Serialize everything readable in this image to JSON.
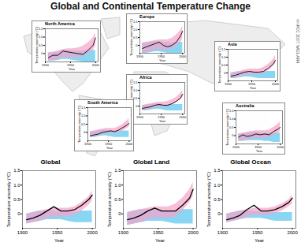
{
  "title": "Global and Continental Temperature Change",
  "credit": "©IPCC 2007: WG1-AR4",
  "chart_data": [
    {
      "type": "line",
      "title": "North America",
      "x_label": "Year",
      "y_label": "Temperature anomaly (°C)",
      "x": [
        1906,
        1915,
        1925,
        1935,
        1945,
        1955,
        1965,
        1975,
        1985,
        1995,
        2000
      ],
      "xlim": [
        1900,
        2005
      ],
      "xticks": [
        1900,
        1950,
        2000
      ],
      "ylim": [
        -0.5,
        1.5
      ],
      "yticks": [
        0,
        0.5,
        {
          "value": 1,
          "label": "1.0"
        },
        1.5
      ],
      "series": [
        {
          "type": "area",
          "color": "#5cc6f0",
          "lower": [
            -0.45,
            -0.45,
            -0.4,
            -0.35,
            -0.35,
            -0.4,
            -0.45,
            -0.5,
            -0.5,
            -0.5,
            -0.5
          ],
          "upper": [
            0.05,
            0.05,
            0.1,
            0.2,
            0.2,
            0.15,
            0.15,
            0.15,
            0.2,
            0.2,
            0.2
          ]
        },
        {
          "type": "area",
          "color": "#f5a3cb",
          "lower": [
            -0.45,
            -0.4,
            -0.35,
            -0.25,
            -0.25,
            -0.25,
            -0.25,
            -0.15,
            0.0,
            0.2,
            0.45
          ],
          "upper": [
            0.05,
            0.1,
            0.15,
            0.25,
            0.3,
            0.3,
            0.35,
            0.45,
            0.65,
            0.95,
            1.25
          ]
        },
        {
          "type": "line",
          "color": "#000000",
          "values": [
            -0.25,
            -0.1,
            -0.1,
            0.15,
            0.1,
            0.05,
            0.0,
            -0.05,
            0.2,
            0.5,
            0.95
          ]
        }
      ]
    },
    {
      "type": "line",
      "title": "Europe",
      "x_label": "Year",
      "y_label": "Temperature anomaly (°C)",
      "x": [
        1906,
        1915,
        1925,
        1935,
        1945,
        1955,
        1965,
        1975,
        1985,
        1995,
        2000
      ],
      "xlim": [
        1900,
        2005
      ],
      "xticks": [
        1900,
        1950,
        2000
      ],
      "ylim": [
        -0.5,
        1.5
      ],
      "yticks": [
        0,
        0.5,
        {
          "value": 1,
          "label": "1.0"
        },
        1.5
      ],
      "series": [
        {
          "type": "area",
          "color": "#5cc6f0",
          "lower": [
            -0.5,
            -0.5,
            -0.45,
            -0.4,
            -0.4,
            -0.45,
            -0.5,
            -0.5,
            -0.5,
            -0.5,
            -0.5
          ],
          "upper": [
            0.15,
            0.15,
            0.2,
            0.25,
            0.25,
            0.2,
            0.2,
            0.15,
            0.2,
            0.2,
            0.2
          ]
        },
        {
          "type": "area",
          "color": "#f5a3cb",
          "lower": [
            -0.5,
            -0.45,
            -0.4,
            -0.3,
            -0.25,
            -0.3,
            -0.3,
            -0.2,
            -0.05,
            0.2,
            0.4
          ],
          "upper": [
            0.15,
            0.2,
            0.25,
            0.3,
            0.35,
            0.35,
            0.35,
            0.45,
            0.65,
            0.95,
            1.2
          ]
        },
        {
          "type": "line",
          "color": "#000000",
          "values": [
            -0.2,
            -0.1,
            0.0,
            0.1,
            0.2,
            0.0,
            -0.1,
            0.0,
            0.2,
            0.6,
            0.9
          ]
        }
      ]
    },
    {
      "type": "line",
      "title": "Asia",
      "x_label": "Year",
      "y_label": "Temperature anomaly (°C)",
      "x": [
        1906,
        1915,
        1925,
        1935,
        1945,
        1955,
        1965,
        1975,
        1985,
        1995,
        2000
      ],
      "xlim": [
        1900,
        2005
      ],
      "xticks": [
        1900,
        1950,
        2000
      ],
      "ylim": [
        -0.5,
        1.5
      ],
      "yticks": [
        0,
        0.5,
        {
          "value": 1,
          "label": "1.0"
        },
        1.5
      ],
      "series": [
        {
          "type": "area",
          "color": "#5cc6f0",
          "lower": [
            -0.35,
            -0.35,
            -0.3,
            -0.25,
            -0.25,
            -0.3,
            -0.35,
            -0.35,
            -0.35,
            -0.35,
            -0.35
          ],
          "upper": [
            0.0,
            0.05,
            0.1,
            0.1,
            0.1,
            0.05,
            0.05,
            0.05,
            0.1,
            0.1,
            0.1
          ]
        },
        {
          "type": "area",
          "color": "#f5a3cb",
          "lower": [
            -0.35,
            -0.3,
            -0.25,
            -0.15,
            -0.1,
            -0.1,
            -0.1,
            -0.05,
            0.15,
            0.4,
            0.6
          ],
          "upper": [
            0.0,
            0.05,
            0.1,
            0.2,
            0.25,
            0.25,
            0.25,
            0.35,
            0.55,
            0.85,
            1.1
          ]
        },
        {
          "type": "line",
          "color": "#000000",
          "values": [
            -0.2,
            -0.15,
            -0.05,
            0.05,
            0.1,
            0.05,
            0.05,
            0.1,
            0.3,
            0.55,
            0.8
          ]
        }
      ]
    },
    {
      "type": "line",
      "title": "Africa",
      "x_label": "Year",
      "y_label": "Temperature anomaly (°C)",
      "x": [
        1906,
        1915,
        1925,
        1935,
        1945,
        1955,
        1965,
        1975,
        1985,
        1995,
        2000
      ],
      "xlim": [
        1900,
        2005
      ],
      "xticks": [
        1900,
        1950,
        2000
      ],
      "ylim": [
        -0.5,
        1.5
      ],
      "yticks": [
        0,
        0.5,
        {
          "value": 1,
          "label": "1.0"
        },
        1.5
      ],
      "series": [
        {
          "type": "area",
          "color": "#5cc6f0",
          "lower": [
            -0.3,
            -0.3,
            -0.25,
            -0.2,
            -0.2,
            -0.25,
            -0.3,
            -0.3,
            -0.3,
            -0.3,
            -0.3
          ],
          "upper": [
            0.05,
            0.05,
            0.1,
            0.15,
            0.15,
            0.1,
            0.1,
            0.1,
            0.1,
            0.1,
            0.1
          ]
        },
        {
          "type": "area",
          "color": "#f5a3cb",
          "lower": [
            -0.3,
            -0.25,
            -0.2,
            -0.1,
            -0.05,
            -0.05,
            -0.05,
            0.05,
            0.2,
            0.4,
            0.55
          ],
          "upper": [
            0.05,
            0.1,
            0.15,
            0.2,
            0.25,
            0.25,
            0.3,
            0.4,
            0.55,
            0.8,
            1.0
          ]
        },
        {
          "type": "line",
          "color": "#000000",
          "values": [
            -0.15,
            -0.1,
            -0.05,
            0.05,
            0.1,
            0.05,
            0.05,
            0.15,
            0.3,
            0.5,
            0.75
          ]
        }
      ]
    },
    {
      "type": "line",
      "title": "South America",
      "x_label": "Year",
      "y_label": "Temperature anomaly (°C)",
      "x": [
        1906,
        1915,
        1925,
        1935,
        1945,
        1955,
        1965,
        1975,
        1985,
        1995,
        2000
      ],
      "xlim": [
        1900,
        2005
      ],
      "xticks": [
        1900,
        1950,
        2000
      ],
      "ylim": [
        -0.5,
        1.5
      ],
      "yticks": [
        0,
        0.5,
        {
          "value": 1,
          "label": "1.0"
        },
        1.5
      ],
      "series": [
        {
          "type": "area",
          "color": "#5cc6f0",
          "lower": [
            -0.3,
            -0.3,
            -0.25,
            -0.2,
            -0.2,
            -0.25,
            -0.3,
            -0.3,
            -0.3,
            -0.3,
            -0.3
          ],
          "upper": [
            0.05,
            0.05,
            0.1,
            0.15,
            0.15,
            0.1,
            0.1,
            0.1,
            0.1,
            0.1,
            0.1
          ]
        },
        {
          "type": "area",
          "color": "#f5a3cb",
          "lower": [
            -0.3,
            -0.25,
            -0.2,
            -0.1,
            -0.05,
            -0.05,
            -0.05,
            0.0,
            0.1,
            0.25,
            0.35
          ],
          "upper": [
            0.05,
            0.1,
            0.15,
            0.2,
            0.25,
            0.25,
            0.25,
            0.35,
            0.5,
            0.7,
            0.85
          ]
        },
        {
          "type": "line",
          "color": "#000000",
          "values": [
            -0.2,
            -0.15,
            -0.1,
            0.0,
            0.05,
            0.1,
            0.05,
            0.15,
            0.3,
            0.45,
            0.55
          ]
        }
      ]
    },
    {
      "type": "line",
      "title": "Australia",
      "x_label": "Year",
      "y_label": "Temperature anomaly (°C)",
      "x": [
        1906,
        1915,
        1925,
        1935,
        1945,
        1955,
        1965,
        1975,
        1985,
        1995,
        2000
      ],
      "xlim": [
        1900,
        2005
      ],
      "xticks": [
        1900,
        1950,
        2000
      ],
      "ylim": [
        -0.5,
        1.5
      ],
      "yticks": [
        0,
        0.5,
        {
          "value": 1,
          "label": "1.0"
        },
        1.5
      ],
      "series": [
        {
          "type": "area",
          "color": "#5cc6f0",
          "lower": [
            -0.35,
            -0.35,
            -0.3,
            -0.3,
            -0.3,
            -0.3,
            -0.35,
            -0.35,
            -0.4,
            -0.4,
            -0.4
          ],
          "upper": [
            0.1,
            0.1,
            0.15,
            0.2,
            0.2,
            0.15,
            0.15,
            0.15,
            0.15,
            0.15,
            0.15
          ]
        },
        {
          "type": "area",
          "color": "#f5a3cb",
          "lower": [
            -0.35,
            -0.3,
            -0.25,
            -0.2,
            -0.15,
            -0.15,
            -0.15,
            -0.1,
            0.0,
            0.15,
            0.25
          ],
          "upper": [
            0.1,
            0.15,
            0.2,
            0.25,
            0.3,
            0.3,
            0.3,
            0.35,
            0.5,
            0.7,
            0.85
          ]
        },
        {
          "type": "line",
          "color": "#000000",
          "values": [
            -0.1,
            0.05,
            -0.05,
            0.0,
            0.1,
            0.05,
            0.1,
            0.05,
            0.25,
            0.4,
            0.5
          ]
        }
      ]
    },
    {
      "type": "line",
      "title": "Global",
      "x_label": "Year",
      "y_label": "Temperature anomaly (°C)",
      "x": [
        1906,
        1915,
        1925,
        1935,
        1945,
        1955,
        1965,
        1975,
        1985,
        1995,
        2000
      ],
      "xlim": [
        1900,
        2005
      ],
      "xticks": [
        1900,
        1950,
        2000
      ],
      "ylim": [
        -0.5,
        1.5
      ],
      "yticks": [
        0,
        0.5,
        {
          "value": 1,
          "label": "1.0"
        },
        1.5
      ],
      "series": [
        {
          "type": "area",
          "color": "#5cc6f0",
          "lower": [
            -0.35,
            -0.3,
            -0.25,
            -0.2,
            -0.2,
            -0.2,
            -0.25,
            -0.3,
            -0.3,
            -0.3,
            -0.3
          ],
          "upper": [
            0.0,
            0.05,
            0.1,
            0.1,
            0.1,
            0.05,
            0.05,
            0.05,
            0.1,
            0.1,
            0.1
          ]
        },
        {
          "type": "area",
          "color": "#f5a3cb",
          "lower": [
            -0.35,
            -0.3,
            -0.25,
            -0.15,
            -0.1,
            -0.1,
            -0.1,
            -0.05,
            0.1,
            0.3,
            0.45
          ],
          "upper": [
            0.0,
            0.05,
            0.1,
            0.15,
            0.2,
            0.2,
            0.2,
            0.25,
            0.4,
            0.6,
            0.8
          ]
        },
        {
          "type": "line",
          "color": "#000000",
          "values": [
            -0.2,
            -0.15,
            -0.05,
            0.1,
            0.25,
            0.1,
            0.1,
            0.15,
            0.3,
            0.5,
            0.65
          ]
        }
      ]
    },
    {
      "type": "line",
      "title": "Global Land",
      "x_label": "Year",
      "y_label": "Temperature anomaly (°C)",
      "x": [
        1906,
        1915,
        1925,
        1935,
        1945,
        1955,
        1965,
        1975,
        1985,
        1995,
        2000
      ],
      "xlim": [
        1900,
        2005
      ],
      "xticks": [
        1900,
        1950,
        2000
      ],
      "ylim": [
        -0.5,
        1.5
      ],
      "yticks": [
        0,
        0.5,
        {
          "value": 1,
          "label": "1.0"
        },
        1.5
      ],
      "series": [
        {
          "type": "area",
          "color": "#5cc6f0",
          "lower": [
            -0.4,
            -0.35,
            -0.3,
            -0.25,
            -0.25,
            -0.25,
            -0.3,
            -0.35,
            -0.35,
            -0.35,
            -0.35
          ],
          "upper": [
            0.05,
            0.1,
            0.15,
            0.15,
            0.15,
            0.1,
            0.1,
            0.1,
            0.15,
            0.15,
            0.15
          ]
        },
        {
          "type": "area",
          "color": "#f5a3cb",
          "lower": [
            -0.4,
            -0.35,
            -0.3,
            -0.2,
            -0.15,
            -0.15,
            -0.15,
            -0.1,
            0.1,
            0.4,
            0.6
          ],
          "upper": [
            0.05,
            0.1,
            0.15,
            0.2,
            0.25,
            0.25,
            0.25,
            0.35,
            0.55,
            0.85,
            1.1
          ]
        },
        {
          "type": "line",
          "color": "#000000",
          "values": [
            -0.2,
            -0.15,
            -0.05,
            0.1,
            0.2,
            0.1,
            0.1,
            0.1,
            0.3,
            0.55,
            0.85
          ]
        }
      ]
    },
    {
      "type": "line",
      "title": "Global Ocean",
      "x_label": "Year",
      "y_label": "Temperature anomaly (°C)",
      "x": [
        1906,
        1915,
        1925,
        1935,
        1945,
        1955,
        1965,
        1975,
        1985,
        1995,
        2000
      ],
      "xlim": [
        1900,
        2005
      ],
      "xticks": [
        1900,
        1950,
        2000
      ],
      "ylim": [
        -0.5,
        1.5
      ],
      "yticks": [
        0,
        0.5,
        {
          "value": 1,
          "label": "1.0"
        },
        1.5
      ],
      "series": [
        {
          "type": "area",
          "color": "#5cc6f0",
          "lower": [
            -0.3,
            -0.25,
            -0.2,
            -0.15,
            -0.15,
            -0.15,
            -0.2,
            -0.25,
            -0.25,
            -0.25,
            -0.25
          ],
          "upper": [
            0.0,
            0.05,
            0.1,
            0.1,
            0.1,
            0.05,
            0.05,
            0.05,
            0.05,
            0.05,
            0.05
          ]
        },
        {
          "type": "area",
          "color": "#f5a3cb",
          "lower": [
            -0.3,
            -0.25,
            -0.2,
            -0.1,
            -0.05,
            -0.05,
            -0.05,
            0.0,
            0.1,
            0.25,
            0.35
          ],
          "upper": [
            0.0,
            0.05,
            0.1,
            0.15,
            0.2,
            0.2,
            0.2,
            0.25,
            0.35,
            0.5,
            0.65
          ]
        },
        {
          "type": "line",
          "color": "#000000",
          "values": [
            -0.2,
            -0.15,
            -0.05,
            0.15,
            0.3,
            0.1,
            0.1,
            0.15,
            0.25,
            0.4,
            0.55
          ]
        }
      ]
    }
  ]
}
